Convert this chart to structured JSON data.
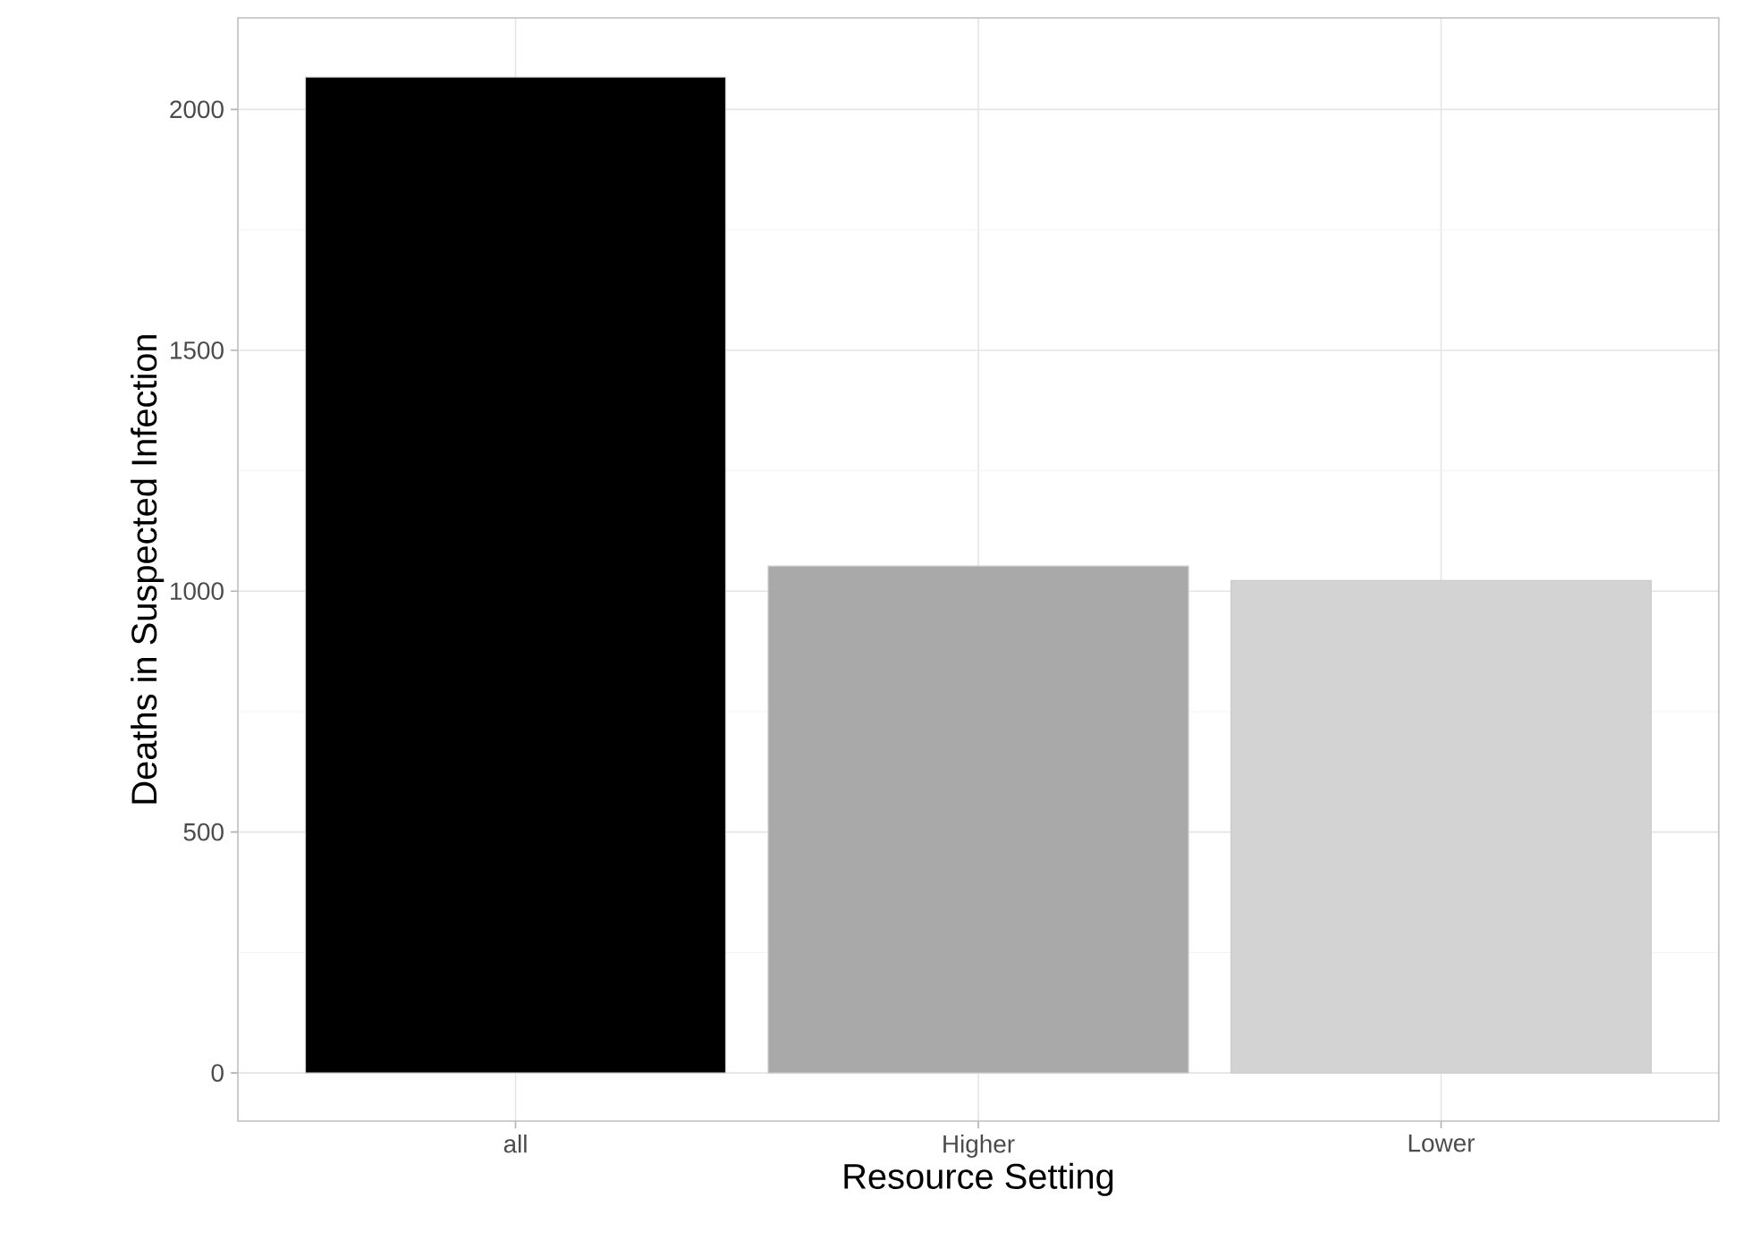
{
  "chart_data": {
    "type": "bar",
    "xlabel": "Resource Setting",
    "ylabel": "Deaths in Suspected Infection",
    "categories": [
      "all",
      "Higher",
      "Lower"
    ],
    "values": [
      2067,
      1052,
      1022
    ],
    "colors": [
      "#000000",
      "#a9a9a9",
      "#d3d3d3"
    ],
    "ylim": [
      -100,
      2190
    ],
    "yticks": [
      0,
      500,
      1000,
      1500,
      2000
    ],
    "grid": true
  }
}
